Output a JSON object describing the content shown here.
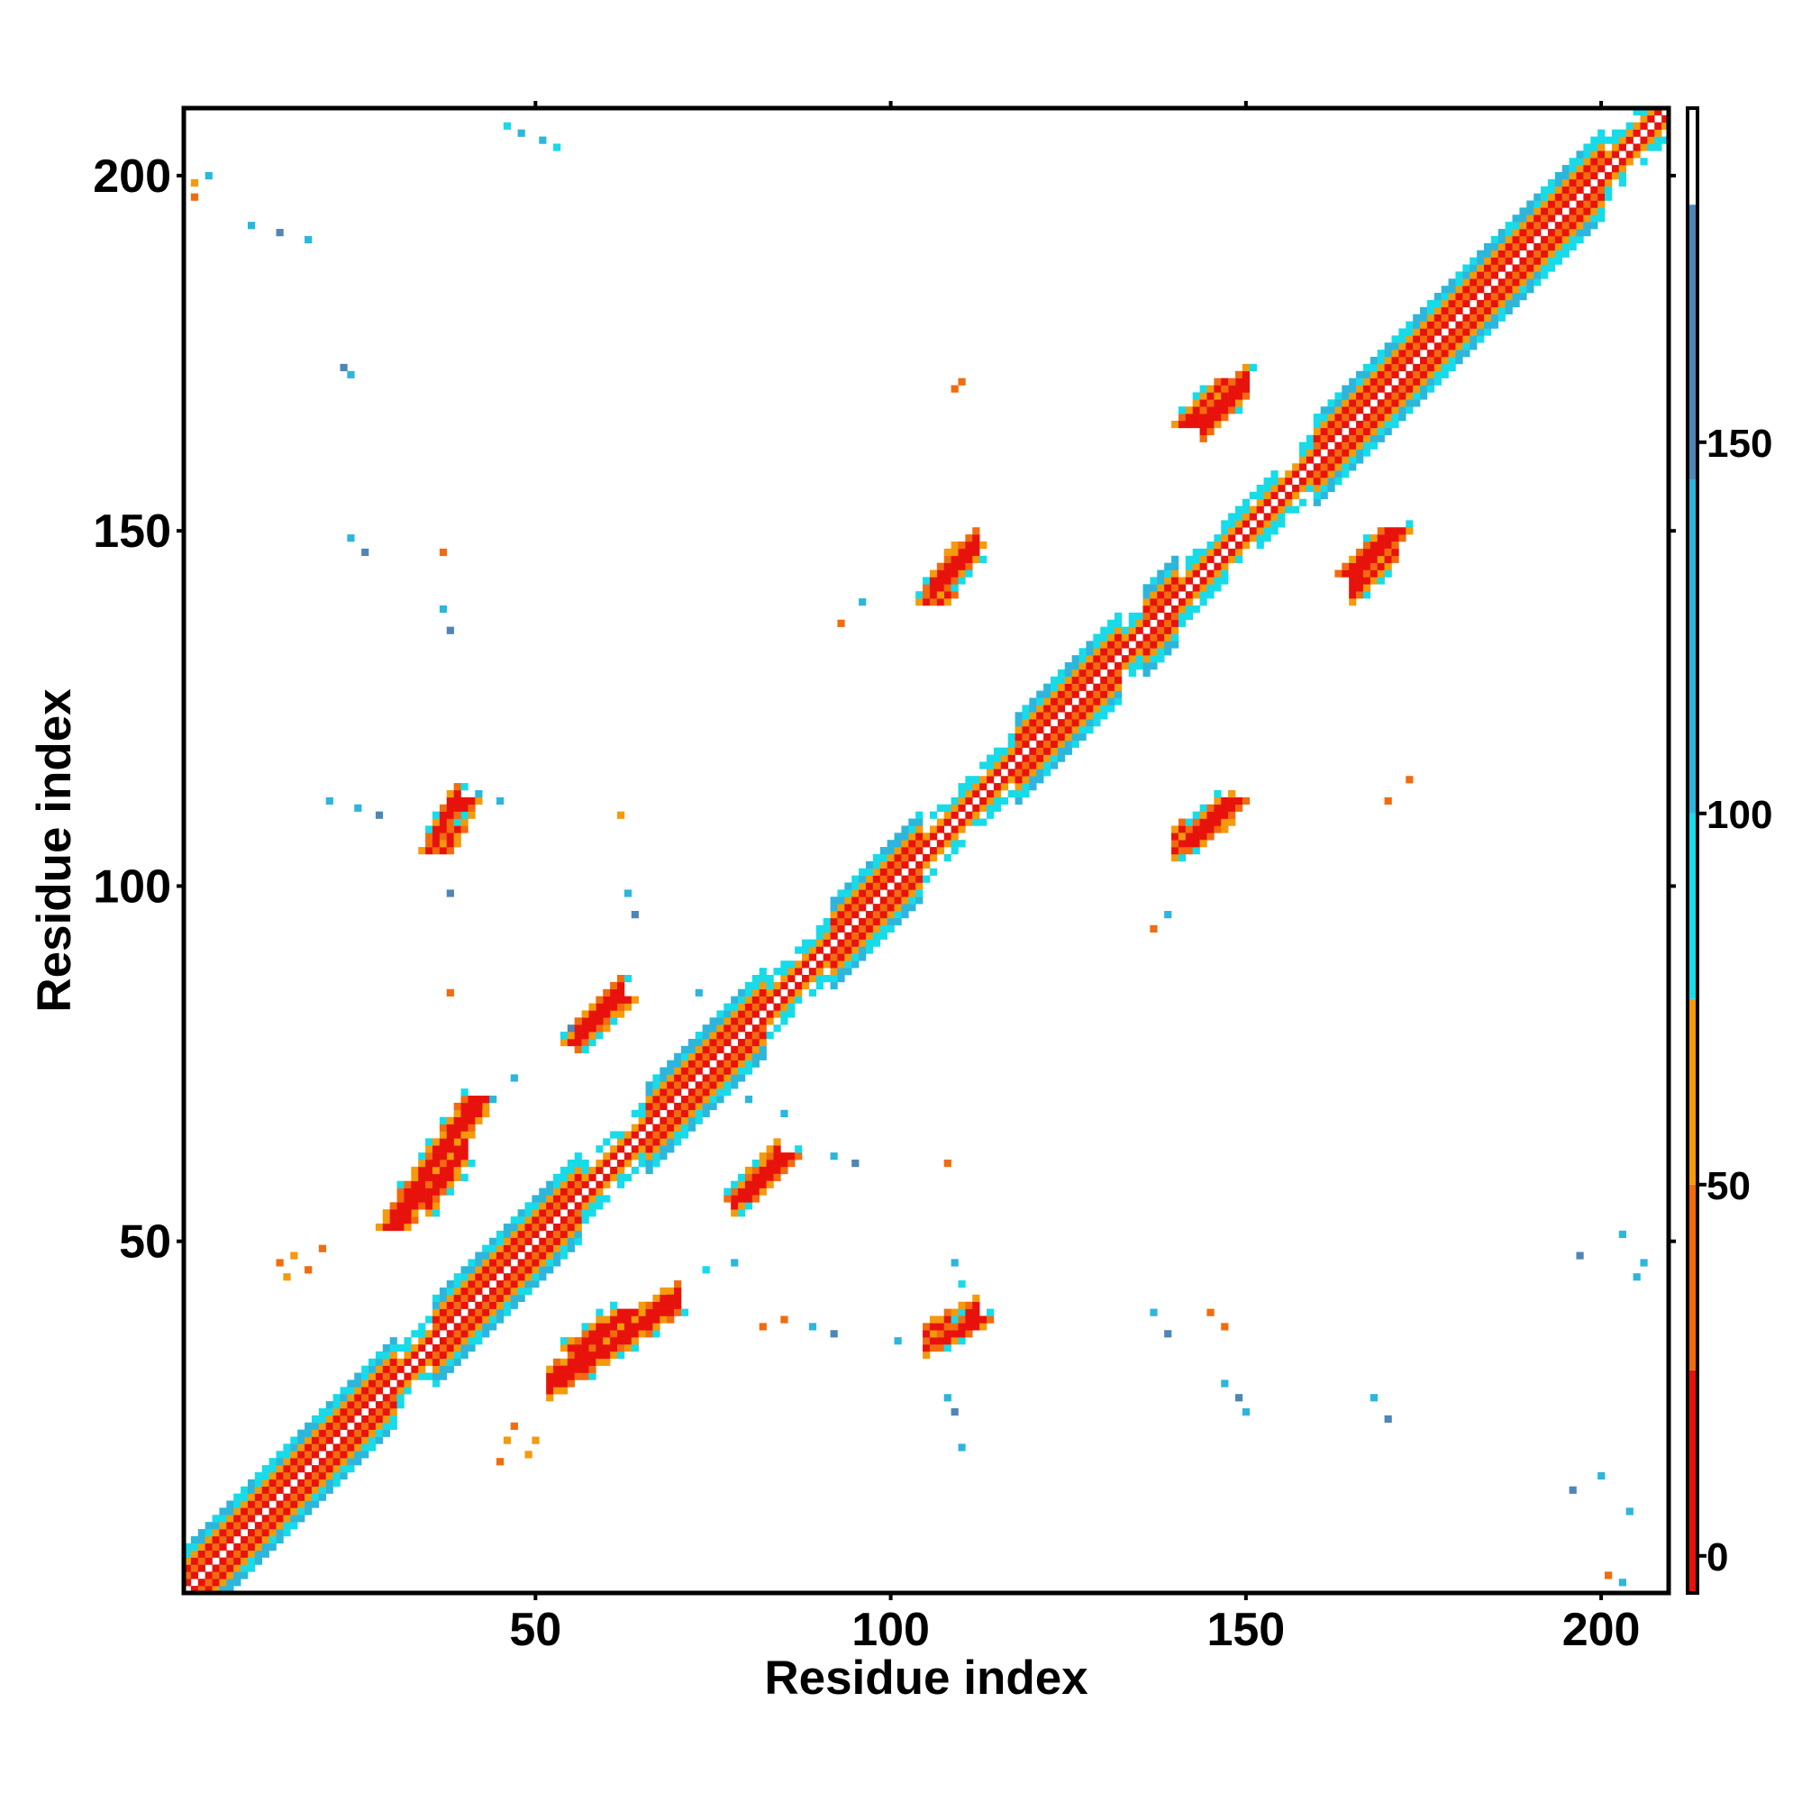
{
  "chart_data": {
    "type": "heatmap",
    "xlabel": "Residue index",
    "ylabel": "Residue index",
    "xlim": [
      1,
      209
    ],
    "ylim": [
      1,
      209
    ],
    "x_ticks": [
      50,
      100,
      150,
      200
    ],
    "y_ticks": [
      50,
      100,
      150,
      200
    ],
    "colorbar": {
      "range": [
        -5,
        195
      ],
      "ticks": [
        0,
        50,
        100,
        150
      ],
      "bands": [
        {
          "from": -5,
          "to": 25,
          "color": "#e8120c"
        },
        {
          "from": 25,
          "to": 50,
          "color": "#f26b0f"
        },
        {
          "from": 50,
          "to": 75,
          "color": "#f59a0a"
        },
        {
          "from": 75,
          "to": 100,
          "color": "#17dbe9"
        },
        {
          "from": 100,
          "to": 145,
          "color": "#2db6dc"
        },
        {
          "from": 145,
          "to": 182,
          "color": "#4f86b5"
        },
        {
          "from": 182,
          "to": 195,
          "color": "#ffffff"
        }
      ]
    },
    "diagonal_band": {
      "from": 1,
      "to": 209,
      "width": 4
    },
    "helical_segments": [
      [
        1,
        30
      ],
      [
        36,
        56
      ],
      [
        66,
        82
      ],
      [
        92,
        104
      ],
      [
        118,
        132
      ],
      [
        136,
        140
      ],
      [
        160,
        200
      ]
    ],
    "strand_pairs": [
      {
        "a": [
          30,
          42
        ],
        "b": [
          52,
          70
        ],
        "orientation": "parallel",
        "tone": "red"
      },
      {
        "a": [
          36,
          40
        ],
        "b": [
          105,
          112
        ],
        "orientation": "parallel",
        "tone": "red"
      },
      {
        "a": [
          56,
          62
        ],
        "b": [
          78,
          84
        ],
        "orientation": "parallel",
        "tone": "red"
      },
      {
        "a": [
          56,
          63
        ],
        "b": [
          35,
          40
        ],
        "orientation": "parallel",
        "tone": "red"
      },
      {
        "a": [
          79,
          85
        ],
        "b": [
          56,
          62
        ],
        "orientation": "parallel",
        "tone": "red"
      },
      {
        "a": [
          106,
          111
        ],
        "b": [
          140,
          148
        ],
        "orientation": "parallel",
        "tone": "red"
      },
      {
        "a": [
          107,
          112
        ],
        "b": [
          36,
          39
        ],
        "orientation": "parallel",
        "tone": "red"
      },
      {
        "a": [
          142,
          148
        ],
        "b": [
          165,
          171
        ],
        "orientation": "parallel",
        "tone": "red"
      },
      {
        "a": [
          142,
          148
        ],
        "b": [
          106,
          112
        ],
        "orientation": "parallel",
        "tone": "red"
      },
      {
        "a": [
          165,
          171
        ],
        "b": [
          144,
          150
        ],
        "orientation": "parallel",
        "tone": "red"
      }
    ],
    "scatter_cells": [
      {
        "x": 14,
        "y": 47,
        "v": 40
      },
      {
        "x": 16,
        "y": 48,
        "v": 55
      },
      {
        "x": 18,
        "y": 46,
        "v": 40
      },
      {
        "x": 15,
        "y": 45,
        "v": 60
      },
      {
        "x": 20,
        "y": 49,
        "v": 40
      },
      {
        "x": 46,
        "y": 22,
        "v": 55
      },
      {
        "x": 47,
        "y": 24,
        "v": 40
      },
      {
        "x": 49,
        "y": 20,
        "v": 60
      },
      {
        "x": 45,
        "y": 19,
        "v": 40
      },
      {
        "x": 50,
        "y": 22,
        "v": 55
      },
      {
        "x": 46,
        "y": 207,
        "v": 90
      },
      {
        "x": 48,
        "y": 206,
        "v": 120
      },
      {
        "x": 51,
        "y": 205,
        "v": 110
      },
      {
        "x": 53,
        "y": 204,
        "v": 90
      },
      {
        "x": 10,
        "y": 193,
        "v": 120
      },
      {
        "x": 14,
        "y": 192,
        "v": 150
      },
      {
        "x": 18,
        "y": 191,
        "v": 110
      },
      {
        "x": 23,
        "y": 173,
        "v": 150
      },
      {
        "x": 24,
        "y": 172,
        "v": 120
      },
      {
        "x": 24,
        "y": 149,
        "v": 120
      },
      {
        "x": 26,
        "y": 147,
        "v": 150
      },
      {
        "x": 37,
        "y": 147,
        "v": 45
      },
      {
        "x": 37,
        "y": 139,
        "v": 110
      },
      {
        "x": 38,
        "y": 136,
        "v": 150
      },
      {
        "x": 21,
        "y": 112,
        "v": 120
      },
      {
        "x": 25,
        "y": 111,
        "v": 110
      },
      {
        "x": 28,
        "y": 110,
        "v": 150
      },
      {
        "x": 42,
        "y": 113,
        "v": 100
      },
      {
        "x": 45,
        "y": 112,
        "v": 120
      },
      {
        "x": 38,
        "y": 99,
        "v": 150
      },
      {
        "x": 38,
        "y": 85,
        "v": 45
      },
      {
        "x": 62,
        "y": 110,
        "v": 55
      },
      {
        "x": 63,
        "y": 99,
        "v": 120
      },
      {
        "x": 64,
        "y": 96,
        "v": 150
      },
      {
        "x": 92,
        "y": 62,
        "v": 110
      },
      {
        "x": 95,
        "y": 61,
        "v": 150
      },
      {
        "x": 108,
        "y": 61,
        "v": 40
      },
      {
        "x": 109,
        "y": 47,
        "v": 110
      },
      {
        "x": 110,
        "y": 44,
        "v": 90
      },
      {
        "x": 108,
        "y": 28,
        "v": 120
      },
      {
        "x": 109,
        "y": 26,
        "v": 150
      },
      {
        "x": 110,
        "y": 21,
        "v": 110
      },
      {
        "x": 109,
        "y": 170,
        "v": 45
      },
      {
        "x": 110,
        "y": 171,
        "v": 45
      },
      {
        "x": 93,
        "y": 137,
        "v": 40
      },
      {
        "x": 96,
        "y": 140,
        "v": 100
      },
      {
        "x": 145,
        "y": 40,
        "v": 45
      },
      {
        "x": 147,
        "y": 38,
        "v": 40
      },
      {
        "x": 147,
        "y": 30,
        "v": 120
      },
      {
        "x": 149,
        "y": 28,
        "v": 150
      },
      {
        "x": 150,
        "y": 26,
        "v": 120
      },
      {
        "x": 137,
        "y": 40,
        "v": 110
      },
      {
        "x": 139,
        "y": 37,
        "v": 150
      },
      {
        "x": 137,
        "y": 94,
        "v": 40
      },
      {
        "x": 139,
        "y": 96,
        "v": 100
      },
      {
        "x": 170,
        "y": 112,
        "v": 45
      },
      {
        "x": 173,
        "y": 115,
        "v": 45
      },
      {
        "x": 168,
        "y": 28,
        "v": 120
      },
      {
        "x": 170,
        "y": 25,
        "v": 150
      },
      {
        "x": 196,
        "y": 15,
        "v": 150
      },
      {
        "x": 200,
        "y": 17,
        "v": 110
      },
      {
        "x": 204,
        "y": 12,
        "v": 120
      },
      {
        "x": 197,
        "y": 48,
        "v": 150
      },
      {
        "x": 203,
        "y": 51,
        "v": 100
      },
      {
        "x": 206,
        "y": 47,
        "v": 110
      },
      {
        "x": 205,
        "y": 45,
        "v": 120
      },
      {
        "x": 201,
        "y": 3,
        "v": 45
      },
      {
        "x": 203,
        "y": 2,
        "v": 100
      },
      {
        "x": 2,
        "y": 199,
        "v": 55
      },
      {
        "x": 4,
        "y": 200,
        "v": 100
      },
      {
        "x": 2,
        "y": 197,
        "v": 40
      },
      {
        "x": 55,
        "y": 80,
        "v": 150
      },
      {
        "x": 47,
        "y": 73,
        "v": 110
      },
      {
        "x": 44,
        "y": 70,
        "v": 100
      },
      {
        "x": 73,
        "y": 85,
        "v": 100
      },
      {
        "x": 80,
        "y": 70,
        "v": 110
      },
      {
        "x": 85,
        "y": 68,
        "v": 120
      },
      {
        "x": 74,
        "y": 46,
        "v": 90
      },
      {
        "x": 78,
        "y": 47,
        "v": 100
      },
      {
        "x": 82,
        "y": 38,
        "v": 40
      },
      {
        "x": 85,
        "y": 39,
        "v": 45
      },
      {
        "x": 89,
        "y": 38,
        "v": 120
      },
      {
        "x": 92,
        "y": 37,
        "v": 150
      },
      {
        "x": 101,
        "y": 36,
        "v": 110
      }
    ]
  }
}
